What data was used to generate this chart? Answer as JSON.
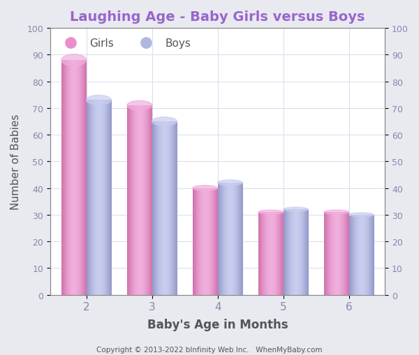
{
  "title": "Laughing Age - Baby Girls versus Boys",
  "xlabel": "Baby's Age in Months",
  "ylabel": "Number of Babies",
  "categories": [
    2,
    3,
    4,
    5,
    6
  ],
  "girls_values": [
    88,
    71,
    40,
    31,
    31
  ],
  "boys_values": [
    73,
    65,
    42,
    32,
    30
  ],
  "girls_color_light": "#F0AEDD",
  "girls_color_mid": "#E890CC",
  "girls_color_dark": "#D070AA",
  "boys_color_light": "#C8CCEE",
  "boys_color_mid": "#B0B8E0",
  "boys_color_dark": "#9098C8",
  "ylim": [
    0,
    100
  ],
  "yticks": [
    0,
    10,
    20,
    30,
    40,
    50,
    60,
    70,
    80,
    90,
    100
  ],
  "title_color": "#9966CC",
  "xlabel_color": "#555555",
  "ylabel_color": "#555555",
  "tick_color": "#8888AA",
  "background_color": "#E8EAF0",
  "plot_bg_color": "#FFFFFF",
  "copyright_text": "Copyright © 2013-2022 bInfinity Web Inc.   WhenMyBaby.com",
  "bar_width": 0.38,
  "legend_girls": "Girls",
  "legend_boys": "Boys",
  "grid_color": "#DDDDEE"
}
